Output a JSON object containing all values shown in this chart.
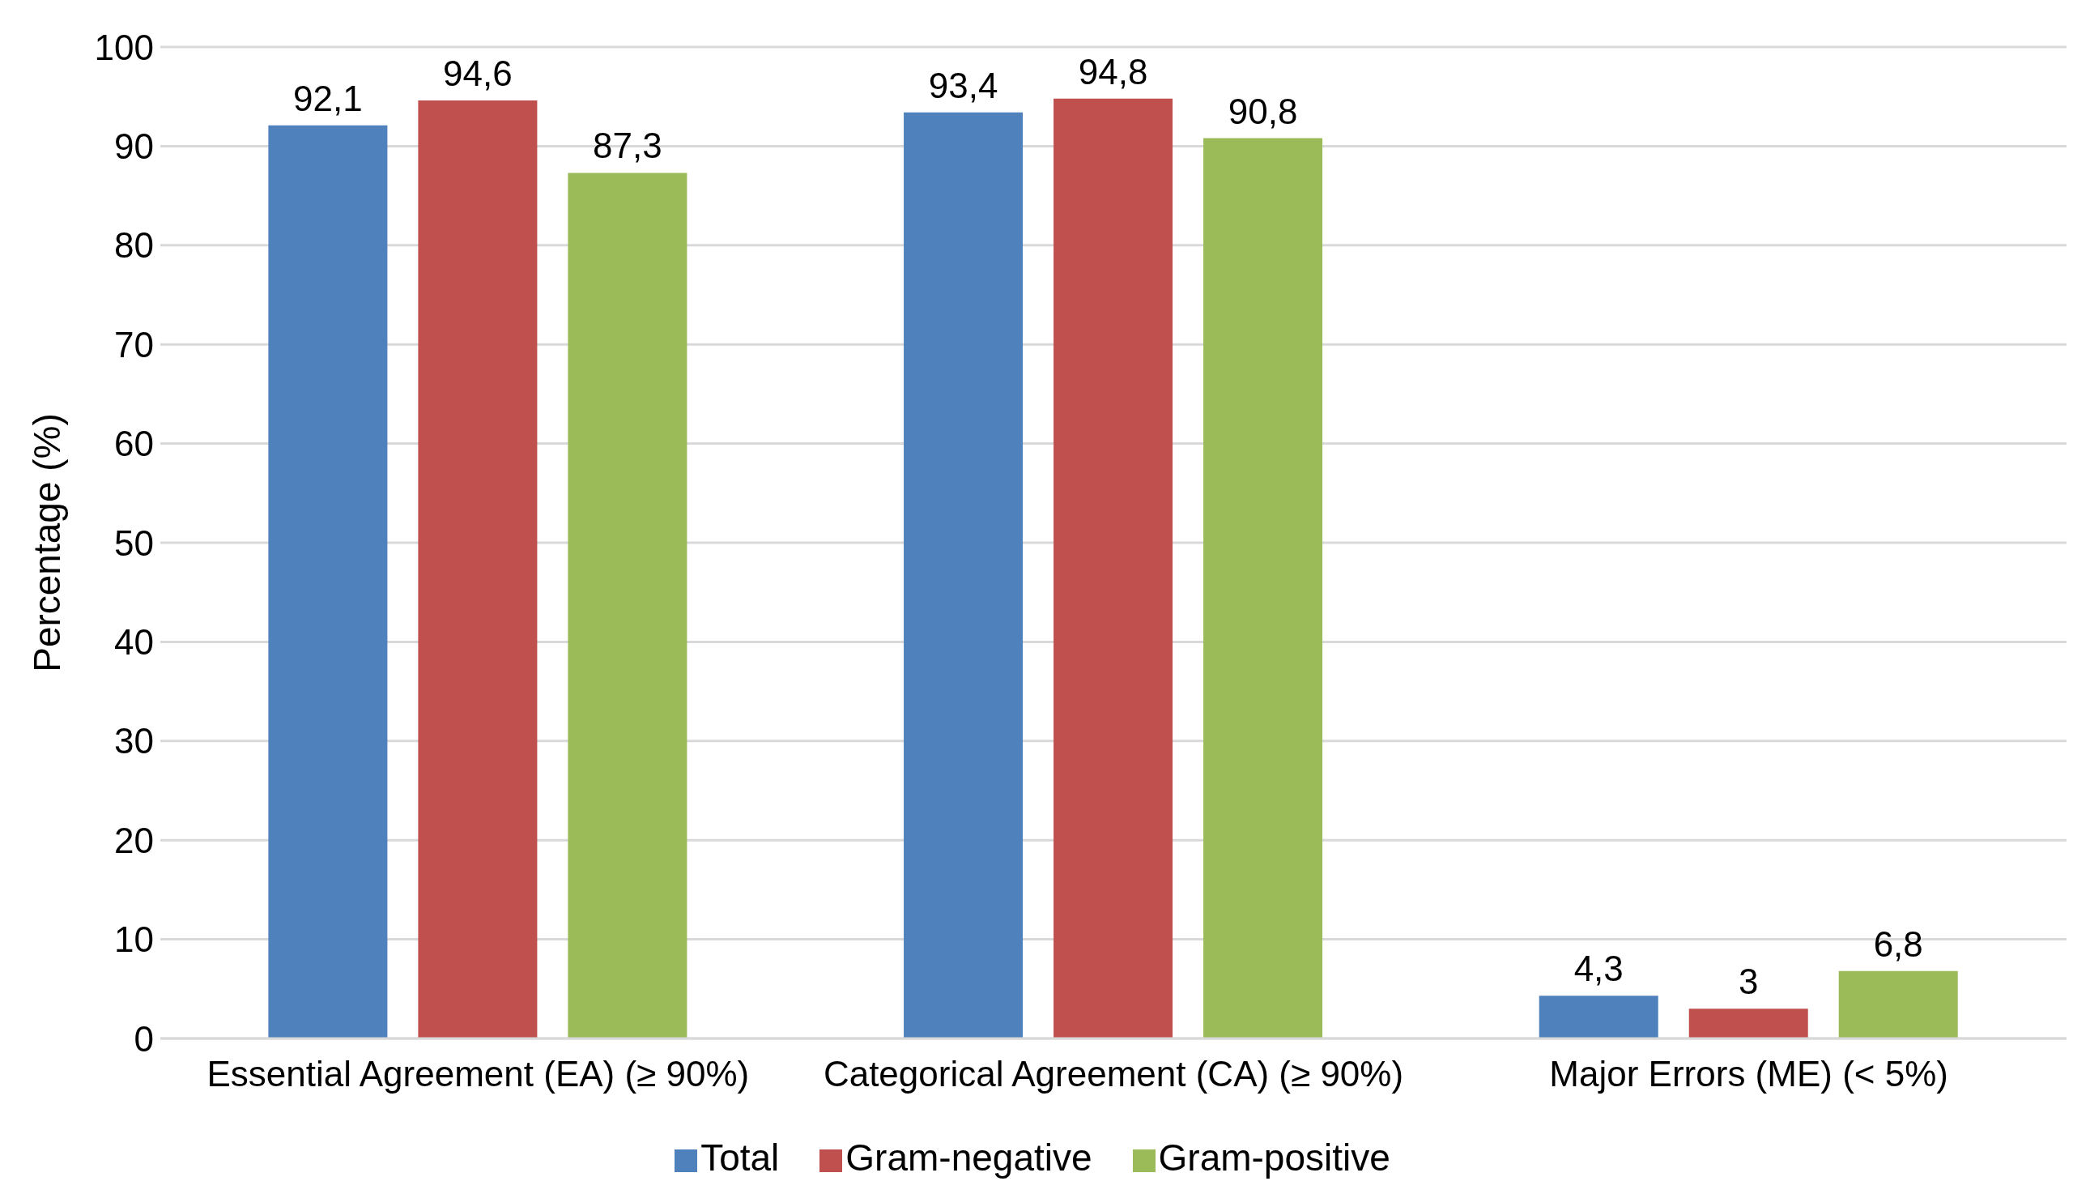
{
  "chart_data": {
    "type": "bar",
    "ylabel": "Percentage (%)",
    "categories": [
      "Essential Agreement (EA) (≥ 90%)",
      "Categorical Agreement (CA) (≥ 90%)",
      "Major Errors (ME) (< 5%)"
    ],
    "series": [
      {
        "name": "Total",
        "color": "#4f81bd",
        "values": [
          92.1,
          93.4,
          4.3
        ],
        "value_labels": [
          "92,1",
          "93,4",
          "4,3"
        ]
      },
      {
        "name": "Gram-negative",
        "color": "#c0504d",
        "values": [
          94.6,
          94.8,
          3
        ],
        "value_labels": [
          "94,6",
          "94,8",
          "3"
        ]
      },
      {
        "name": "Gram-positive",
        "color": "#9bbb59",
        "values": [
          87.3,
          90.8,
          6.8
        ],
        "value_labels": [
          "87,3",
          "90,8",
          "6,8"
        ]
      }
    ],
    "ylim": [
      0,
      100
    ],
    "yticks": [
      0,
      10,
      20,
      30,
      40,
      50,
      60,
      70,
      80,
      90,
      100
    ],
    "grid": "y",
    "legend": "bottom"
  }
}
